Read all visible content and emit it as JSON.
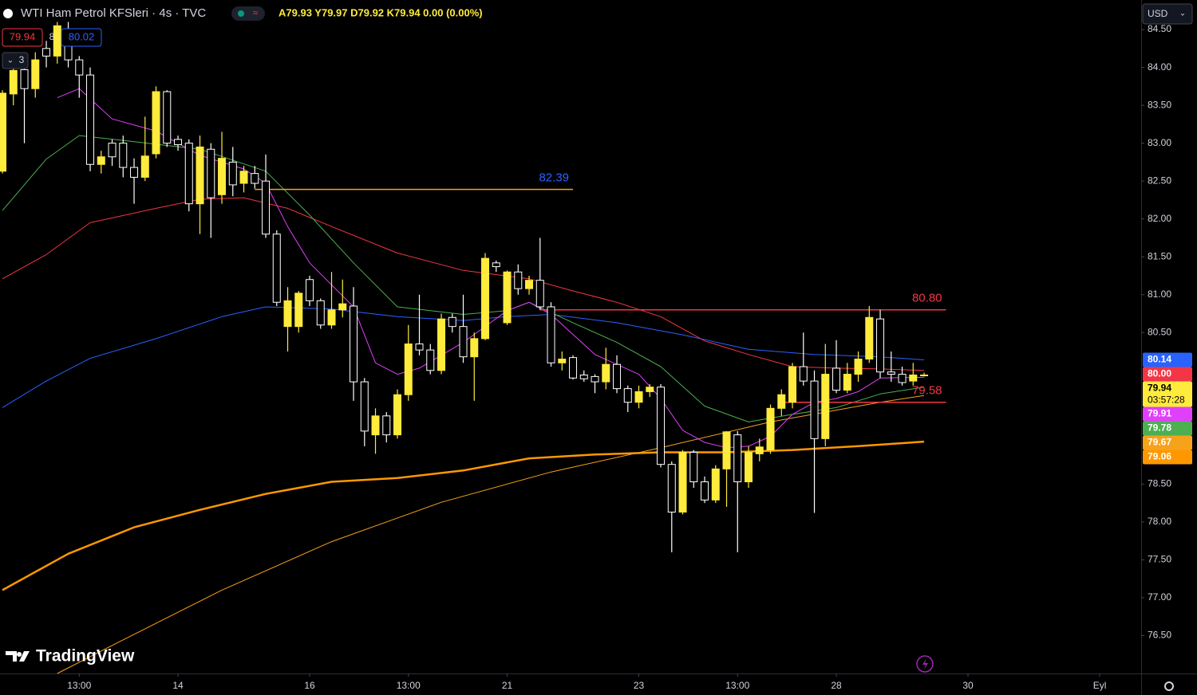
{
  "header": {
    "symbol": "WTI Ham Petrol KFSleri · 4s · TVC",
    "ohlc": "A79.93 Y79.97 D79.92 K79.94 0.00 (0.00%)",
    "sell": "79.94",
    "spread": "8",
    "buy": "80.02",
    "indicators_count": "3"
  },
  "currency": "USD",
  "brand": "TradingView",
  "chart_data": {
    "type": "candlestick",
    "up_color": "#ffeb3b",
    "down_color": "#ffffff",
    "open": [
      82.63,
      83.65,
      83.97,
      83.72,
      84.25,
      84.15,
      84.45,
      84.1,
      83.9,
      82.72,
      83.0,
      83.0,
      82.68,
      82.55,
      82.86,
      83.68,
      83.05,
      83.0,
      82.2,
      82.92,
      82.32,
      82.75,
      82.47,
      82.6,
      82.5,
      81.8,
      80.58,
      80.58,
      81.2,
      80.92,
      80.6,
      80.8,
      80.85,
      79.85,
      79.15,
      79.4,
      79.15,
      79.68,
      80.35,
      80.27,
      80.0,
      80.7,
      80.58,
      80.18,
      80.42,
      81.42,
      80.63,
      81.3,
      81.08,
      81.19,
      80.84,
      80.1,
      80.17,
      79.94,
      79.92,
      79.85,
      80.08,
      79.76,
      79.58,
      79.72,
      79.78,
      78.76,
      78.13,
      78.92,
      78.53,
      78.29,
      78.7,
      79.15,
      78.53,
      78.9,
      78.95,
      79.5,
      79.58,
      80.05,
      79.86,
      79.1,
      80.03,
      79.74,
      79.95,
      80.15,
      80.68,
      79.98,
      79.95,
      79.86,
      79.93
    ],
    "high": [
      83.7,
      84.18,
      84.1,
      84.2,
      84.35,
      84.6,
      84.6,
      84.15,
      84.0,
      82.9,
      83.05,
      83.1,
      82.8,
      83.35,
      83.75,
      83.7,
      83.1,
      83.05,
      83.1,
      83.0,
      83.15,
      82.95,
      82.7,
      82.7,
      82.85,
      81.85,
      81.1,
      81.05,
      81.25,
      80.95,
      81.3,
      81.2,
      81.1,
      79.9,
      79.5,
      79.45,
      79.75,
      80.6,
      81.0,
      80.35,
      80.75,
      80.75,
      81.0,
      80.5,
      81.55,
      81.45,
      81.32,
      81.4,
      81.25,
      81.75,
      80.9,
      80.25,
      80.2,
      80.0,
      79.95,
      80.3,
      80.2,
      79.8,
      79.8,
      79.82,
      79.82,
      78.8,
      78.95,
      78.95,
      78.6,
      78.75,
      79.2,
      79.2,
      79.0,
      79.1,
      79.55,
      79.75,
      80.1,
      80.5,
      80.0,
      80.35,
      80.4,
      80.1,
      80.25,
      80.85,
      80.8,
      80.25,
      80.05,
      80.1,
      79.97
    ],
    "low": [
      82.6,
      83.5,
      83.0,
      83.6,
      84.0,
      84.05,
      84.0,
      83.6,
      82.63,
      82.6,
      82.7,
      82.55,
      82.2,
      82.5,
      82.8,
      82.95,
      82.9,
      82.1,
      81.8,
      81.75,
      82.2,
      82.3,
      82.35,
      82.4,
      81.75,
      80.85,
      80.25,
      80.5,
      80.85,
      80.55,
      80.55,
      80.7,
      79.6,
      79.0,
      78.9,
      79.05,
      79.1,
      79.6,
      80.2,
      79.95,
      79.95,
      80.5,
      80.1,
      79.6,
      80.4,
      81.3,
      80.6,
      81.0,
      81.0,
      80.8,
      80.05,
      80.0,
      79.88,
      79.85,
      79.7,
      79.75,
      79.7,
      79.45,
      79.5,
      79.65,
      78.72,
      77.6,
      78.1,
      78.45,
      78.25,
      78.25,
      78.2,
      77.6,
      78.45,
      78.8,
      78.9,
      79.4,
      79.5,
      79.8,
      78.12,
      79.0,
      79.7,
      79.7,
      79.85,
      80.1,
      79.9,
      79.85,
      79.8,
      79.8,
      79.92
    ],
    "close": [
      83.66,
      83.96,
      83.72,
      84.1,
      84.15,
      84.55,
      84.1,
      83.9,
      82.72,
      82.82,
      82.82,
      82.68,
      82.55,
      82.83,
      83.68,
      83.0,
      82.98,
      82.2,
      82.95,
      82.28,
      82.8,
      82.45,
      82.63,
      82.47,
      81.8,
      80.9,
      80.92,
      81.02,
      80.92,
      80.6,
      80.8,
      80.88,
      79.85,
      79.2,
      79.4,
      79.15,
      79.68,
      80.35,
      80.27,
      80.0,
      80.68,
      80.58,
      80.18,
      80.42,
      81.48,
      81.37,
      81.3,
      81.08,
      81.19,
      80.84,
      80.1,
      80.15,
      79.9,
      79.89,
      79.85,
      80.08,
      79.76,
      79.58,
      79.72,
      79.78,
      78.76,
      78.13,
      78.92,
      78.53,
      78.29,
      78.7,
      79.19,
      78.53,
      78.92,
      78.99,
      79.5,
      79.68,
      80.05,
      79.86,
      79.1,
      79.95,
      79.74,
      79.95,
      80.15,
      80.7,
      79.98,
      79.95,
      79.84,
      79.94,
      79.94
    ],
    "xlim": [
      -0.22,
      103.78
    ],
    "ylim": [
      76.0,
      84.89
    ],
    "yticks": [
      {
        "value": 84.5,
        "label": "84.50"
      },
      {
        "value": 84,
        "label": "84.00"
      },
      {
        "value": 83.5,
        "label": "83.50"
      },
      {
        "value": 83,
        "label": "83.00"
      },
      {
        "value": 82.5,
        "label": "82.50"
      },
      {
        "value": 82,
        "label": "82.00"
      },
      {
        "value": 81.5,
        "label": "81.50"
      },
      {
        "value": 81,
        "label": "81.00"
      },
      {
        "value": 80.5,
        "label": "80.50"
      },
      {
        "value": 78.5,
        "label": "78.50"
      },
      {
        "value": 78,
        "label": "78.00"
      },
      {
        "value": 77.5,
        "label": "77.50"
      },
      {
        "value": 77,
        "label": "77.00"
      },
      {
        "value": 76.5,
        "label": "76.50"
      }
    ],
    "xticks": [
      {
        "value": 7,
        "label": "13:00"
      },
      {
        "value": 16,
        "label": "14"
      },
      {
        "value": 28,
        "label": "16"
      },
      {
        "value": 37,
        "label": "13:00"
      },
      {
        "value": 46,
        "label": "21"
      },
      {
        "value": 58,
        "label": "23"
      },
      {
        "value": 67,
        "label": "13:00"
      },
      {
        "value": 76,
        "label": "28"
      },
      {
        "value": 88,
        "label": "30"
      },
      {
        "value": 100,
        "label": "Eyl"
      }
    ],
    "series": [
      {
        "color": "#ff9800",
        "line_width": 2.5,
        "last_label": "79.06",
        "x": [
          0,
          6,
          12,
          18,
          24,
          30,
          36,
          42,
          48,
          54,
          60,
          66,
          72,
          78,
          84
        ],
        "values": [
          77.1,
          77.58,
          77.93,
          78.16,
          78.37,
          78.53,
          78.58,
          78.68,
          78.84,
          78.89,
          78.92,
          78.92,
          78.95,
          79.0,
          79.06
        ]
      },
      {
        "color": "#f7a21b",
        "line_width": 1,
        "last_label": "79.67",
        "x": [
          5,
          10,
          20,
          30,
          40,
          50,
          60,
          70,
          80,
          84
        ],
        "values": [
          76.0,
          76.37,
          77.1,
          77.74,
          78.26,
          78.66,
          78.98,
          79.32,
          79.58,
          79.67
        ]
      },
      {
        "color": "#2962ff",
        "line_width": 1,
        "last_label": "80.14",
        "x": [
          0,
          4,
          8,
          14,
          20,
          24,
          30,
          36,
          42,
          46,
          50,
          56,
          62,
          68,
          74,
          80,
          84
        ],
        "values": [
          79.51,
          79.86,
          80.16,
          80.42,
          80.71,
          80.84,
          80.81,
          80.71,
          80.66,
          80.71,
          80.74,
          80.63,
          80.47,
          80.28,
          80.21,
          80.18,
          80.14
        ]
      },
      {
        "color": "#f23645",
        "line_width": 1,
        "last_label": "80.00",
        "x": [
          0,
          4,
          8,
          14,
          18,
          22,
          26,
          30,
          36,
          42,
          48,
          52,
          56,
          60,
          64,
          68,
          72,
          76,
          80,
          84
        ],
        "values": [
          81.21,
          81.53,
          81.95,
          82.14,
          82.26,
          82.28,
          82.14,
          81.9,
          81.55,
          81.32,
          81.21,
          81.05,
          80.9,
          80.71,
          80.39,
          80.21,
          80.05,
          80.03,
          80.02,
          80.0
        ]
      },
      {
        "color": "#4caf50",
        "line_width": 1,
        "last_label": "79.78",
        "x": [
          0,
          4,
          7,
          12,
          18,
          24,
          28,
          32,
          36,
          42,
          46,
          48,
          52,
          56,
          60,
          64,
          68,
          72,
          76,
          80,
          84
        ],
        "values": [
          82.11,
          82.79,
          83.1,
          83.02,
          82.92,
          82.63,
          82.05,
          81.42,
          80.84,
          80.74,
          80.79,
          80.9,
          80.63,
          80.37,
          80.05,
          79.53,
          79.32,
          79.42,
          79.51,
          79.69,
          79.78
        ]
      },
      {
        "color": "#e040fb",
        "line_width": 1,
        "last_label": "79.91",
        "x": [
          5,
          7,
          10,
          14,
          18,
          22,
          24,
          26,
          28,
          32,
          34,
          36,
          38,
          42,
          46,
          48,
          50,
          54,
          58,
          60,
          62,
          64,
          66,
          68,
          70,
          72,
          74,
          76,
          78,
          80,
          84
        ],
        "values": [
          83.6,
          83.72,
          83.32,
          83.16,
          82.84,
          82.66,
          82.47,
          81.9,
          81.42,
          80.84,
          80.1,
          79.95,
          80.03,
          80.37,
          80.79,
          80.9,
          80.74,
          80.21,
          79.95,
          79.63,
          79.21,
          79.05,
          78.98,
          79.0,
          79.13,
          79.42,
          79.58,
          79.63,
          79.72,
          79.9,
          79.91
        ]
      }
    ],
    "levels": [
      {
        "value": 82.39,
        "label": "82.39",
        "color": "#f7a21b",
        "label_color": "#2962ff",
        "from": 23,
        "to": 52
      },
      {
        "value": 80.8,
        "label": "80.80",
        "color": "#f23645",
        "label_color": "#f23645",
        "from": 49,
        "to": 86
      },
      {
        "value": 79.58,
        "label": "79.58",
        "color": "#f23645",
        "label_color": "#f23645",
        "from": 71,
        "to": 86
      }
    ],
    "last_price": 79.94,
    "countdown": "03:57:28"
  }
}
